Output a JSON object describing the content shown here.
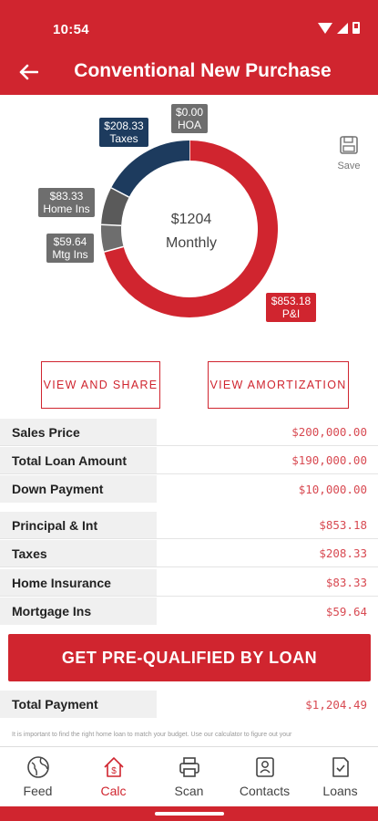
{
  "status": {
    "time": "10:54"
  },
  "header": {
    "title": "Conventional New Purchase",
    "back_icon": "arrow-left-icon"
  },
  "chart_data": {
    "type": "pie",
    "center_amount": "$1204",
    "center_label": "Monthly",
    "series": [
      {
        "name": "P&I",
        "value": 853.18,
        "display": "$853.18",
        "color": "#d0252f"
      },
      {
        "name": "Mtg Ins",
        "value": 59.64,
        "display": "$59.64",
        "color": "#6e6e6e"
      },
      {
        "name": "Home Ins",
        "value": 83.33,
        "display": "$83.33",
        "color": "#5a5a5a"
      },
      {
        "name": "Taxes",
        "value": 208.33,
        "display": "$208.33",
        "color": "#1d3b5e"
      },
      {
        "name": "HOA",
        "value": 0.0,
        "display": "$0.00",
        "color": "#6e6e6e"
      }
    ]
  },
  "save": {
    "label": "Save"
  },
  "buttons": {
    "view_share": "VIEW AND SHARE",
    "view_amortization": "VIEW AMORTIZATION"
  },
  "loan_rows": [
    {
      "label": "Sales Price",
      "value": "$200,000.00"
    },
    {
      "label": "Total Loan Amount",
      "value": "$190,000.00"
    },
    {
      "label": "Down Payment",
      "value": "$10,000.00"
    }
  ],
  "payment_rows": [
    {
      "label": "Principal & Int",
      "value": "$853.18"
    },
    {
      "label": "Taxes",
      "value": "$208.33"
    },
    {
      "label": "Home Insurance",
      "value": "$83.33"
    },
    {
      "label": "Mortgage Ins",
      "value": "$59.64"
    }
  ],
  "cta": {
    "label": "GET PRE-QUALIFIED BY LOAN"
  },
  "total": {
    "label": "Total Payment",
    "value": "$1,204.49"
  },
  "disclaimer": "It is important to find the right home loan to match your budget. Use our calculator to figure out your",
  "nav": [
    {
      "label": "Feed",
      "icon": "globe-icon",
      "active": false
    },
    {
      "label": "Calc",
      "icon": "home-dollar-icon",
      "active": true
    },
    {
      "label": "Scan",
      "icon": "printer-icon",
      "active": false
    },
    {
      "label": "Contacts",
      "icon": "contacts-icon",
      "active": false
    },
    {
      "label": "Loans",
      "icon": "document-check-icon",
      "active": false
    }
  ],
  "colors": {
    "brand": "#d0252f",
    "navy": "#1d3b5e",
    "gray": "#6e6e6e"
  }
}
